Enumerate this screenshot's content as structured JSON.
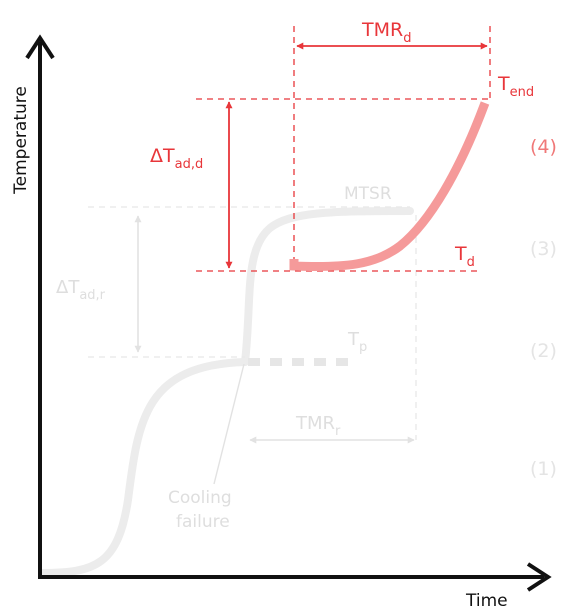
{
  "axes": {
    "y_label": "Temperature",
    "x_label": "Time"
  },
  "labels": {
    "tmr_d": {
      "main": "TMR",
      "sub": "d"
    },
    "t_end": {
      "main": "T",
      "sub": "end"
    },
    "delta_t_ad_d": {
      "main": "ΔT",
      "sub": "ad,d"
    },
    "t_d": {
      "main": "T",
      "sub": "d"
    },
    "mtsr": "MTSR",
    "delta_t_ad_r": {
      "main": "ΔT",
      "sub": "ad,r"
    },
    "t_p": {
      "main": "T",
      "sub": "p"
    },
    "tmr_r": {
      "main": "TMR",
      "sub": "r"
    },
    "cooling_failure_line1": "Cooling",
    "cooling_failure_line2": "failure"
  },
  "levels": [
    "(4)",
    "(3)",
    "(2)",
    "(1)"
  ],
  "colors": {
    "accent": "#e8363a",
    "highlight_curve": "#f59a9a",
    "faded": "#e4e4e4",
    "axis": "#111111"
  }
}
